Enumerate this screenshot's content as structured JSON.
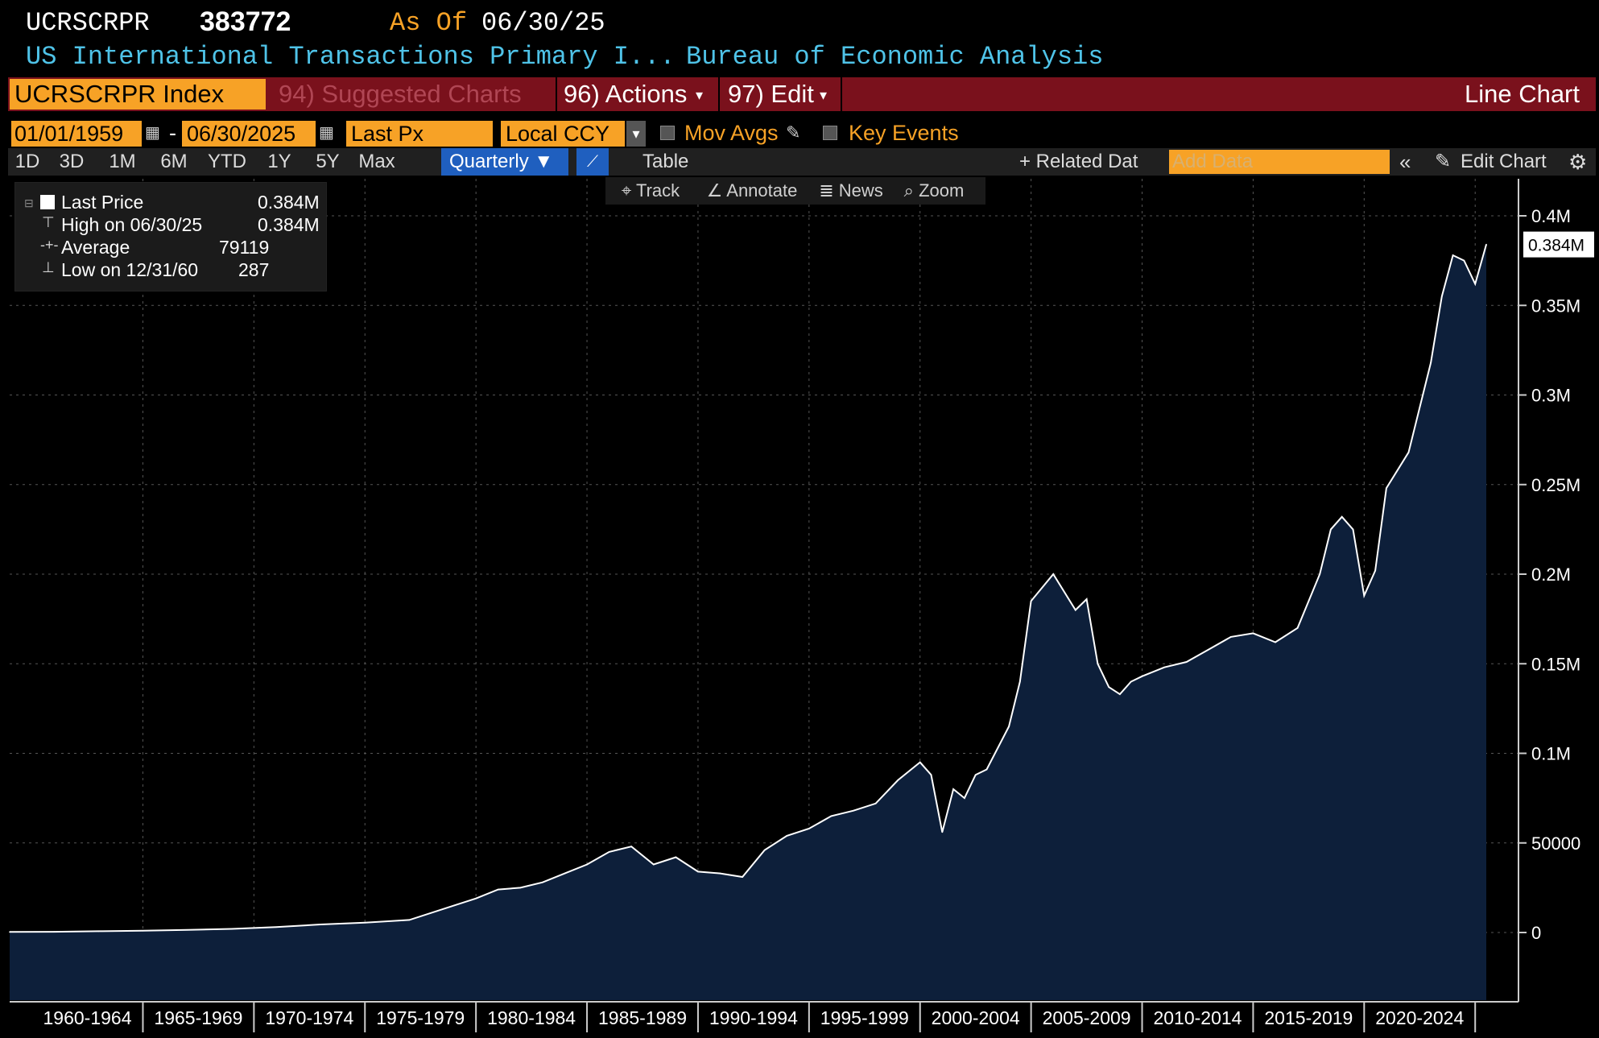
{
  "header": {
    "ticker": "UCRSCRPR",
    "last_value": "383772",
    "as_of_label": "As Of",
    "as_of_date": "06/30/25",
    "description": "US International Transactions Primary I...",
    "source": "Bureau of Economic Analysis"
  },
  "menubar": {
    "security": "UCRSCRPR Index",
    "suggested": "94) Suggested Charts",
    "actions": "96) Actions",
    "edit": "97) Edit",
    "chart_type": "Line Chart"
  },
  "controls": {
    "start_date": "01/01/1959",
    "end_date": "06/30/2025",
    "field": "Last Px",
    "currency": "Local CCY",
    "mov_avgs": "Mov Avgs",
    "key_events": "Key Events"
  },
  "toolbar": {
    "periods": [
      "1D",
      "3D",
      "1M",
      "6M",
      "YTD",
      "1Y",
      "5Y",
      "Max"
    ],
    "frequency": "Quarterly",
    "table": "Table",
    "related": "+ Related Dat",
    "add_data_placeholder": "Add Data",
    "edit_chart": "Edit Chart"
  },
  "chart_tools": [
    "Track",
    "Annotate",
    "News",
    "Zoom"
  ],
  "legend": {
    "last_price_label": "Last Price",
    "last_price_value": "0.384M",
    "high_label": "High on 06/30/25",
    "high_value": "0.384M",
    "avg_label": "Average",
    "avg_value": "79119",
    "low_label": "Low on 12/31/60",
    "low_value": "287"
  },
  "colors": {
    "line": "#ffffff",
    "fill": "#0d1f3a",
    "accent": "#f7a226",
    "menu": "#7a111c",
    "title": "#4fc3e8"
  },
  "chart_data": {
    "type": "area",
    "ylim": [
      -25000,
      420000
    ],
    "yticks": [
      {
        "v": 0,
        "label": "0"
      },
      {
        "v": 50000,
        "label": "50000"
      },
      {
        "v": 100000,
        "label": "0.1M"
      },
      {
        "v": 150000,
        "label": "0.15M"
      },
      {
        "v": 200000,
        "label": "0.2M"
      },
      {
        "v": 250000,
        "label": "0.25M"
      },
      {
        "v": 300000,
        "label": "0.3M"
      },
      {
        "v": 350000,
        "label": "0.35M"
      },
      {
        "v": 400000,
        "label": "0.4M"
      }
    ],
    "x_period_labels": [
      "1960-1964",
      "1965-1969",
      "1970-1974",
      "1975-1979",
      "1980-1984",
      "1985-1989",
      "1990-1994",
      "1995-1999",
      "2000-2004",
      "2005-2009",
      "2010-2014",
      "2015-2019",
      "2020-2024"
    ],
    "last_label": "0.384M",
    "x": [
      1959,
      1961,
      1963,
      1965,
      1967,
      1969,
      1971,
      1973,
      1975,
      1977,
      1979,
      1980,
      1981,
      1982,
      1983,
      1984,
      1985,
      1986,
      1987,
      1988,
      1989,
      1990,
      1991,
      1992,
      1993,
      1994,
      1995,
      1996,
      1997,
      1998,
      1999,
      2000,
      2000.5,
      2001,
      2001.5,
      2002,
      2002.5,
      2003,
      2004,
      2004.5,
      2005,
      2006,
      2007,
      2007.5,
      2008,
      2008.5,
      2009,
      2009.5,
      2010,
      2011,
      2012,
      2013,
      2014,
      2015,
      2016,
      2017,
      2018,
      2018.5,
      2019,
      2019.5,
      2020,
      2020.5,
      2021,
      2022,
      2023,
      2023.5,
      2024,
      2024.5,
      2025,
      2025.5
    ],
    "y": [
      300,
      400,
      700,
      1000,
      1500,
      2000,
      3000,
      4500,
      5500,
      7000,
      15000,
      19000,
      24000,
      25000,
      28000,
      33000,
      38000,
      45000,
      48000,
      38000,
      42000,
      34000,
      33000,
      31000,
      46000,
      54000,
      58000,
      65000,
      68000,
      72000,
      85000,
      95000,
      88000,
      56000,
      80000,
      75000,
      88000,
      91000,
      115000,
      140000,
      185000,
      200000,
      180000,
      186000,
      150000,
      137000,
      133000,
      140000,
      143000,
      148000,
      151000,
      158000,
      165000,
      167000,
      162000,
      170000,
      200000,
      225000,
      232000,
      225000,
      188000,
      202000,
      248000,
      268000,
      318000,
      355000,
      378000,
      375000,
      362000,
      384000
    ]
  }
}
